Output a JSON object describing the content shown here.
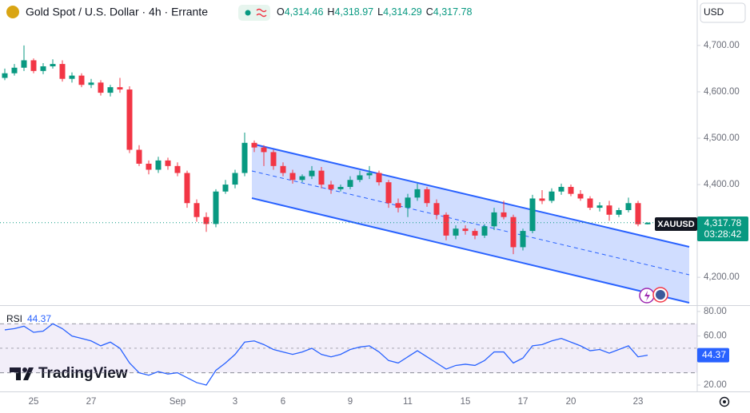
{
  "header": {
    "title": "Gold Spot / U.S. Dollar · 4h · Errante",
    "ohlc": [
      {
        "key": "O",
        "value": "4,314.46"
      },
      {
        "key": "H",
        "value": "4,318.97"
      },
      {
        "key": "L",
        "value": "4,314.29"
      },
      {
        "key": "C",
        "value": "4,317.78"
      }
    ],
    "currency": "USD",
    "symbol": "XAUUSD",
    "countdown": "03:28:42",
    "watermark": "TradingView"
  },
  "chart_data": [
    {
      "type": "candlestick",
      "title": "Gold Spot / U.S. Dollar",
      "categories": [
        null,
        null,
        null,
        "25",
        null,
        null,
        null,
        null,
        null,
        "27",
        null,
        null,
        null,
        null,
        null,
        null,
        null,
        null,
        "Sep",
        null,
        null,
        null,
        null,
        null,
        "3",
        null,
        null,
        null,
        null,
        "6",
        null,
        null,
        null,
        null,
        null,
        null,
        "9",
        null,
        null,
        null,
        null,
        null,
        "11",
        null,
        null,
        null,
        null,
        null,
        "15",
        null,
        null,
        null,
        null,
        null,
        "17",
        null,
        null,
        null,
        null,
        "20",
        null,
        null,
        null,
        null,
        null,
        null,
        "23",
        null
      ],
      "up_color": "#089981",
      "down_color": "#f23645",
      "open": [
        4630,
        4640,
        4652,
        4668,
        4645,
        4655,
        4660,
        4628,
        4635,
        4615,
        4620,
        4598,
        4610,
        4605,
        4475,
        4445,
        4432,
        4452,
        4440,
        4425,
        4360,
        4330,
        4315,
        4385,
        4400,
        4425,
        4490,
        4480,
        4470,
        4440,
        4425,
        4410,
        4418,
        4430,
        4400,
        4390,
        4395,
        4410,
        4420,
        4425,
        4405,
        4360,
        4350,
        4372,
        4390,
        4360,
        4335,
        4290,
        4305,
        4300,
        4290,
        4310,
        4340,
        4330,
        4265,
        4300,
        4370,
        4365,
        4385,
        4395,
        4380,
        4370,
        4350,
        4355,
        4335,
        4345,
        4360,
        4314.46
      ],
      "high": [
        4650,
        4660,
        4700,
        4672,
        4662,
        4670,
        4668,
        4642,
        4640,
        4628,
        4625,
        4615,
        4630,
        4612,
        4485,
        4452,
        4460,
        4458,
        4448,
        4430,
        4368,
        4340,
        4390,
        4410,
        4432,
        4512,
        4495,
        4485,
        4475,
        4448,
        4432,
        4422,
        4440,
        4438,
        4408,
        4400,
        4418,
        4430,
        4440,
        4430,
        4410,
        4370,
        4380,
        4402,
        4395,
        4368,
        4340,
        4312,
        4312,
        4305,
        4315,
        4350,
        4365,
        4335,
        4305,
        4378,
        4388,
        4392,
        4402,
        4400,
        4388,
        4375,
        4362,
        4365,
        4350,
        4372,
        4365,
        4318.97
      ],
      "low": [
        4625,
        4635,
        4645,
        4640,
        4638,
        4650,
        4622,
        4620,
        4610,
        4608,
        4592,
        4590,
        4598,
        4468,
        4440,
        4422,
        4425,
        4432,
        4418,
        4350,
        4320,
        4298,
        4308,
        4380,
        4392,
        4418,
        4470,
        4440,
        4432,
        4418,
        4402,
        4405,
        4412,
        4392,
        4380,
        4385,
        4390,
        4405,
        4412,
        4398,
        4350,
        4340,
        4330,
        4365,
        4352,
        4325,
        4280,
        4282,
        4292,
        4282,
        4285,
        4302,
        4325,
        4250,
        4258,
        4295,
        4358,
        4360,
        4378,
        4375,
        4365,
        4345,
        4342,
        4322,
        4330,
        4340,
        4310,
        4314.29
      ],
      "close": [
        4640,
        4652,
        4668,
        4645,
        4655,
        4660,
        4628,
        4635,
        4615,
        4620,
        4598,
        4610,
        4605,
        4475,
        4445,
        4432,
        4452,
        4440,
        4425,
        4360,
        4330,
        4315,
        4385,
        4400,
        4425,
        4490,
        4480,
        4470,
        4440,
        4425,
        4410,
        4418,
        4430,
        4400,
        4390,
        4395,
        4410,
        4420,
        4425,
        4405,
        4360,
        4350,
        4372,
        4390,
        4360,
        4335,
        4290,
        4305,
        4300,
        4290,
        4310,
        4340,
        4330,
        4265,
        4300,
        4370,
        4365,
        4385,
        4395,
        4380,
        4370,
        4350,
        4355,
        4335,
        4345,
        4360,
        4314.46,
        4317.78
      ],
      "last_price": 4317.78,
      "last_price_label": "4,317.78",
      "ylim": [
        4140,
        4798
      ],
      "yticks": [
        {
          "value": 4700,
          "label": "4,700.00"
        },
        {
          "value": 4600,
          "label": "4,600.00"
        },
        {
          "value": 4500,
          "label": "4,500.00"
        },
        {
          "value": 4400,
          "label": "4,400.00"
        },
        {
          "value": 4200,
          "label": "4,200.00"
        }
      ],
      "grid": false
    },
    {
      "type": "line",
      "title": "RSI",
      "color": "#2962ff",
      "values": [
        65,
        66,
        68,
        63,
        64,
        70,
        66,
        60,
        58,
        56,
        52,
        55,
        50,
        38,
        30,
        28,
        31,
        29,
        30,
        26,
        22,
        20,
        32,
        38,
        45,
        55,
        56,
        53,
        49,
        47,
        45,
        47,
        50,
        45,
        43,
        45,
        49,
        51,
        52,
        47,
        40,
        38,
        43,
        48,
        43,
        38,
        33,
        36,
        37,
        36,
        40,
        47,
        47,
        38,
        42,
        52,
        53,
        56,
        58,
        55,
        52,
        48,
        49,
        46,
        49,
        52,
        43,
        44.37
      ],
      "upper_band": 70,
      "lower_band": 30,
      "middle": 50,
      "ylim": [
        14.8,
        84.5
      ],
      "yticks": [
        {
          "value": 80,
          "label": "80.00"
        },
        {
          "value": 60,
          "label": "60.00"
        },
        {
          "value": 20,
          "label": "20.00"
        }
      ]
    }
  ]
}
